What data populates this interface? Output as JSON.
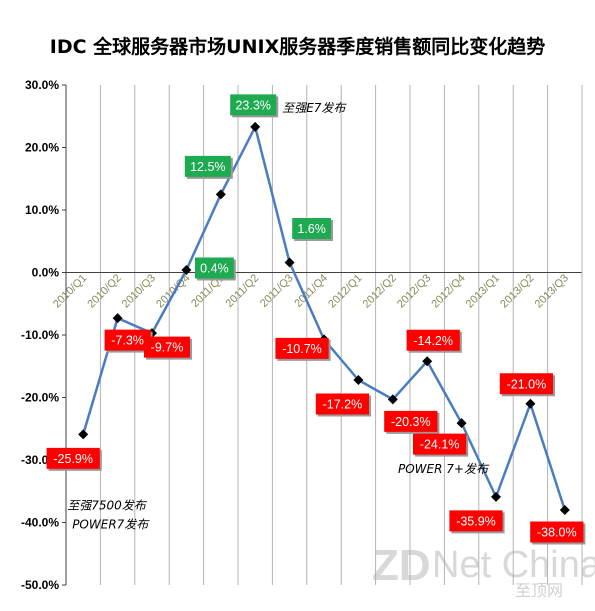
{
  "chart_data": {
    "type": "line",
    "title": "IDC 全球服务器市场UNIX服务器季度销售额同比变化趋势",
    "categories": [
      "2010/Q1",
      "2010/Q2",
      "2010/Q3",
      "2010/Q4",
      "2011/Q1",
      "2011/Q2",
      "2011/Q3",
      "2011/Q4",
      "2012/Q1",
      "2012/Q2",
      "2012/Q3",
      "2012/Q4",
      "2013/Q1",
      "2013/Q2",
      "2013/Q3"
    ],
    "series": [
      {
        "values": [
          -25.9,
          -7.3,
          -9.7,
          0.4,
          12.5,
          23.3,
          1.6,
          -10.7,
          -17.2,
          -20.3,
          -14.2,
          -24.1,
          -35.9,
          -21.0,
          -38.0
        ]
      }
    ],
    "data_labels": [
      "-25.9%",
      "-7.3%",
      "-9.7%",
      "0.4%",
      "12.5%",
      "23.3%",
      "1.6%",
      "-10.7%",
      "-17.2%",
      "-20.3%",
      "-14.2%",
      "-24.1%",
      "-35.9%",
      "-21.0%",
      "-38.0%"
    ],
    "y_ticks": [
      "30.0%",
      "20.0%",
      "10.0%",
      "0.0%",
      "-10.0%",
      "-20.0%",
      "-30.0%",
      "-40.0%",
      "-50.0%"
    ],
    "ylim": [
      -50,
      30
    ],
    "grid": "vertical",
    "annotations": [
      {
        "index": 5,
        "text": "至强E7发布"
      },
      {
        "index": 0,
        "text": "至强7500发布"
      },
      {
        "index": 0,
        "text": "POWER7发布"
      },
      {
        "index": 12,
        "text": "POWER 7+发布"
      }
    ],
    "colors": {
      "line": "#4a7cbf",
      "marker": "#000000",
      "positive_label": "#1eaa50",
      "negative_label": "#ff0000",
      "grid": "#b3b3b3",
      "axis": "#404040"
    }
  },
  "watermark": {
    "brand_zd": "ZD",
    "brand_net": "Net China",
    "brand_cn": "至顶网"
  }
}
